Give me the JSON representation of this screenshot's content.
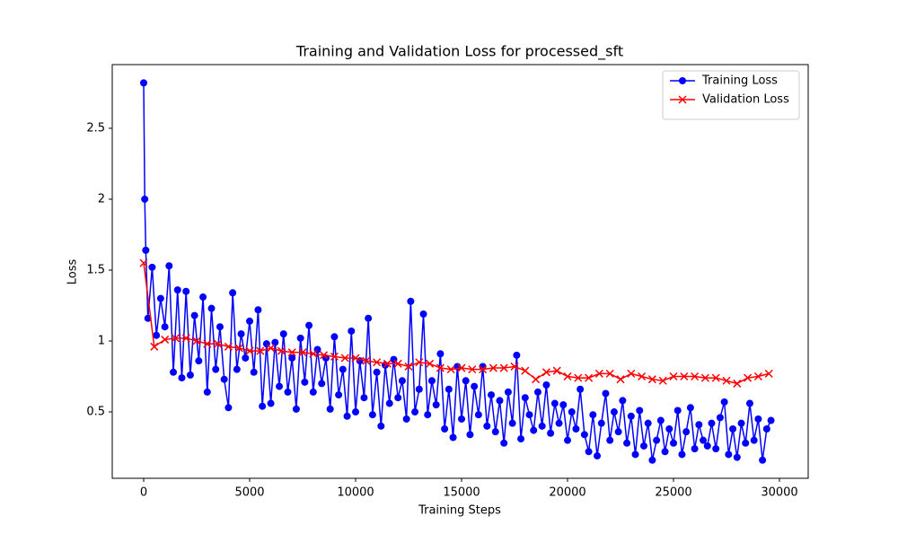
{
  "chart_data": {
    "type": "line",
    "title": "Training and Validation Loss for processed_sft",
    "xlabel": "Training Steps",
    "ylabel": "Loss",
    "xlim": [
      -1483,
      31356
    ],
    "ylim": [
      0.032,
      2.949
    ],
    "xticks": [
      0,
      5000,
      10000,
      15000,
      20000,
      25000,
      30000
    ],
    "yticks": [
      0.5,
      1.0,
      1.5,
      2.0,
      2.5
    ],
    "legend": "upper right",
    "series": [
      {
        "name": "Training Loss",
        "color": "#0000ff",
        "marker": "circle",
        "x": [
          0,
          50,
          100,
          200,
          400,
          600,
          800,
          1000,
          1200,
          1400,
          1600,
          1800,
          2000,
          2200,
          2400,
          2600,
          2800,
          3000,
          3200,
          3400,
          3600,
          3800,
          4000,
          4200,
          4400,
          4600,
          4800,
          5000,
          5200,
          5400,
          5600,
          5800,
          6000,
          6200,
          6400,
          6600,
          6800,
          7000,
          7200,
          7400,
          7600,
          7800,
          8000,
          8200,
          8400,
          8600,
          8800,
          9000,
          9200,
          9400,
          9600,
          9800,
          10000,
          10200,
          10400,
          10600,
          10800,
          11000,
          11200,
          11400,
          11600,
          11800,
          12000,
          12200,
          12400,
          12600,
          12800,
          13000,
          13200,
          13400,
          13600,
          13800,
          14000,
          14200,
          14400,
          14600,
          14800,
          15000,
          15200,
          15400,
          15600,
          15800,
          16000,
          16200,
          16400,
          16600,
          16800,
          17000,
          17200,
          17400,
          17600,
          17800,
          18000,
          18200,
          18400,
          18600,
          18800,
          19000,
          19200,
          19400,
          19600,
          19800,
          20000,
          20200,
          20400,
          20600,
          20800,
          21000,
          21200,
          21400,
          21600,
          21800,
          22000,
          22200,
          22400,
          22600,
          22800,
          23000,
          23200,
          23400,
          23600,
          23800,
          24000,
          24200,
          24400,
          24600,
          24800,
          25000,
          25200,
          25400,
          25600,
          25800,
          26000,
          26200,
          26400,
          26600,
          26800,
          27000,
          27200,
          27400,
          27600,
          27800,
          28000,
          28200,
          28400,
          28600,
          28800,
          29000,
          29200,
          29400,
          29600
        ],
        "values": [
          2.82,
          2.0,
          1.64,
          1.16,
          1.52,
          1.04,
          1.3,
          1.1,
          1.53,
          0.78,
          1.36,
          0.74,
          1.35,
          0.76,
          1.18,
          0.86,
          1.31,
          0.64,
          1.23,
          0.8,
          1.1,
          0.73,
          0.53,
          1.34,
          0.8,
          1.05,
          0.88,
          1.14,
          0.78,
          1.22,
          0.54,
          0.98,
          0.56,
          0.99,
          0.68,
          1.05,
          0.64,
          0.88,
          0.52,
          1.02,
          0.71,
          1.11,
          0.64,
          0.94,
          0.7,
          0.88,
          0.52,
          1.03,
          0.62,
          0.8,
          0.47,
          1.07,
          0.5,
          0.86,
          0.6,
          1.16,
          0.48,
          0.78,
          0.4,
          0.83,
          0.56,
          0.87,
          0.6,
          0.72,
          0.45,
          1.28,
          0.5,
          0.66,
          1.19,
          0.48,
          0.72,
          0.55,
          0.91,
          0.38,
          0.66,
          0.32,
          0.82,
          0.45,
          0.72,
          0.34,
          0.68,
          0.48,
          0.82,
          0.4,
          0.62,
          0.36,
          0.58,
          0.28,
          0.64,
          0.42,
          0.9,
          0.31,
          0.6,
          0.48,
          0.37,
          0.64,
          0.4,
          0.69,
          0.35,
          0.56,
          0.42,
          0.55,
          0.3,
          0.5,
          0.38,
          0.66,
          0.34,
          0.22,
          0.48,
          0.19,
          0.42,
          0.63,
          0.3,
          0.5,
          0.36,
          0.58,
          0.28,
          0.47,
          0.2,
          0.51,
          0.26,
          0.42,
          0.16,
          0.3,
          0.44,
          0.22,
          0.38,
          0.28,
          0.51,
          0.2,
          0.36,
          0.53,
          0.24,
          0.41,
          0.3,
          0.26,
          0.42,
          0.24,
          0.46,
          0.57,
          0.2,
          0.38,
          0.18,
          0.42,
          0.28,
          0.56,
          0.3,
          0.45,
          0.16,
          0.38,
          0.44
        ]
      },
      {
        "name": "Validation Loss",
        "color": "#ff0000",
        "marker": "x",
        "x": [
          0,
          500,
          1000,
          1500,
          2000,
          2500,
          3000,
          3500,
          4000,
          4500,
          5000,
          5500,
          6000,
          6500,
          7000,
          7500,
          8000,
          8500,
          9000,
          9500,
          10000,
          10500,
          11000,
          11500,
          12000,
          12500,
          13000,
          13500,
          14000,
          14500,
          15000,
          15500,
          16000,
          16500,
          17000,
          17500,
          18000,
          18500,
          19000,
          19500,
          20000,
          20500,
          21000,
          21500,
          22000,
          22500,
          23000,
          23500,
          24000,
          24500,
          25000,
          25500,
          26000,
          26500,
          27000,
          27500,
          28000,
          28500,
          29000,
          29500
        ],
        "values": [
          1.55,
          0.96,
          1.01,
          1.02,
          1.02,
          1.0,
          0.98,
          0.98,
          0.96,
          0.95,
          0.93,
          0.93,
          0.95,
          0.93,
          0.92,
          0.92,
          0.91,
          0.9,
          0.89,
          0.88,
          0.88,
          0.86,
          0.85,
          0.84,
          0.84,
          0.82,
          0.85,
          0.84,
          0.81,
          0.8,
          0.81,
          0.8,
          0.8,
          0.81,
          0.81,
          0.82,
          0.79,
          0.73,
          0.78,
          0.79,
          0.75,
          0.74,
          0.74,
          0.77,
          0.77,
          0.73,
          0.77,
          0.75,
          0.73,
          0.72,
          0.75,
          0.75,
          0.75,
          0.74,
          0.74,
          0.72,
          0.7,
          0.74,
          0.75,
          0.77
        ]
      }
    ]
  }
}
